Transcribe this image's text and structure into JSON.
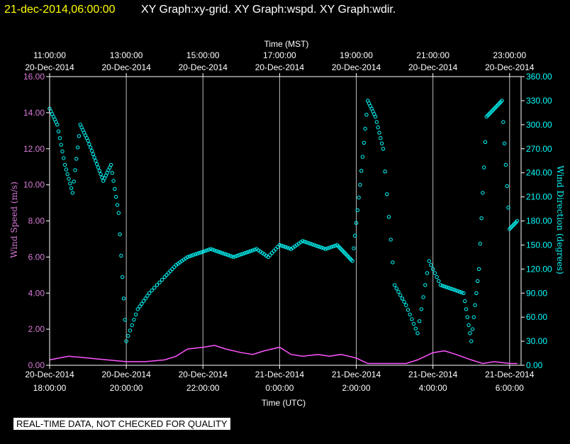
{
  "header": {
    "date_stamp": "21-dec-2014,06:00:00",
    "graphs_label": "XY Graph:xy-grid.  XY Graph:wspd.  XY Graph:wdir."
  },
  "notice": "REAL-TIME DATA, NOT CHECKED FOR QUALITY",
  "colors": {
    "wind_speed": "#ff55ff",
    "wind_direction": "#00ffff",
    "axes": "#ffffff",
    "background": "#000000",
    "title_date": "#ffff00"
  },
  "chart_data": {
    "type": "scatter",
    "grid": "vertical",
    "top_axis": {
      "label": "Time (MST)",
      "ticks": [
        {
          "hour": 18,
          "time": "11:00:00",
          "date": "20-Dec-2014"
        },
        {
          "hour": 20,
          "time": "13:00:00",
          "date": "20-Dec-2014"
        },
        {
          "hour": 22,
          "time": "15:00:00",
          "date": "20-Dec-2014"
        },
        {
          "hour": 24,
          "time": "17:00:00",
          "date": "20-Dec-2014"
        },
        {
          "hour": 26,
          "time": "19:00:00",
          "date": "20-Dec-2014"
        },
        {
          "hour": 28,
          "time": "21:00:00",
          "date": "20-Dec-2014"
        },
        {
          "hour": 30,
          "time": "23:00:00",
          "date": "20-Dec-2014"
        }
      ]
    },
    "bottom_axis": {
      "label": "Time (UTC)",
      "xlim": [
        18,
        30.3
      ],
      "ticks": [
        {
          "hour": 18,
          "date": "20-Dec-2014",
          "time": "18:00:00"
        },
        {
          "hour": 20,
          "date": "20-Dec-2014",
          "time": "20:00:00"
        },
        {
          "hour": 22,
          "date": "20-Dec-2014",
          "time": "22:00:00"
        },
        {
          "hour": 24,
          "date": "21-Dec-2014",
          "time": "0:00:00"
        },
        {
          "hour": 26,
          "date": "21-Dec-2014",
          "time": "2:00:00"
        },
        {
          "hour": 28,
          "date": "21-Dec-2014",
          "time": "4:00:00"
        },
        {
          "hour": 30,
          "date": "21-Dec-2014",
          "time": "6:00:00"
        }
      ]
    },
    "left_axis": {
      "label": "Wind Speed (m/s)",
      "ylim": [
        0,
        16
      ],
      "ticks": [
        "0.00",
        "2.00",
        "4.00",
        "6.00",
        "8.00",
        "10.00",
        "12.00",
        "14.00",
        "16.00"
      ]
    },
    "right_axis": {
      "label": "Wind Direction (degrees)",
      "ylim": [
        0,
        360
      ],
      "ticks": [
        "0.00",
        "30.00",
        "60.00",
        "90.00",
        "120.00",
        "150.00",
        "180.00",
        "210.00",
        "240.00",
        "270.00",
        "300.00",
        "330.00",
        "360.00"
      ]
    },
    "series": [
      {
        "key": "wspd",
        "axis": "left",
        "style": "line",
        "x": [
          18.0,
          18.5,
          19.0,
          19.5,
          20.0,
          20.5,
          21.0,
          21.3,
          21.6,
          22.0,
          22.3,
          22.6,
          23.0,
          23.3,
          23.6,
          24.0,
          24.3,
          24.6,
          25.0,
          25.3,
          25.6,
          26.0,
          26.3,
          26.6,
          27.0,
          27.3,
          27.6,
          28.0,
          28.3,
          28.6,
          29.0,
          29.3,
          29.6,
          30.0,
          30.2
        ],
        "values": [
          0.3,
          0.5,
          0.4,
          0.3,
          0.2,
          0.2,
          0.3,
          0.5,
          0.9,
          1.0,
          1.1,
          0.9,
          0.7,
          0.6,
          0.8,
          1.0,
          0.6,
          0.5,
          0.6,
          0.5,
          0.6,
          0.4,
          0.1,
          0.1,
          0.1,
          0.1,
          0.3,
          0.7,
          0.8,
          0.6,
          0.3,
          0.1,
          0.2,
          0.1,
          0.1
        ]
      },
      {
        "key": "wdir",
        "axis": "right",
        "style": "markers",
        "x": [
          18.0,
          18.2,
          18.4,
          18.6,
          18.8,
          19.0,
          19.2,
          19.4,
          19.6,
          19.8,
          20.0,
          20.3,
          20.6,
          21.0,
          21.3,
          21.6,
          21.9,
          22.2,
          22.5,
          22.8,
          23.1,
          23.4,
          23.7,
          24.0,
          24.3,
          24.6,
          24.9,
          25.2,
          25.5,
          25.7,
          25.9,
          26.1,
          26.3,
          26.5,
          26.7,
          27.0,
          27.3,
          27.6,
          27.9,
          28.2,
          28.5,
          28.8,
          29.0,
          29.2,
          29.4,
          29.6,
          29.8,
          30.0,
          30.2
        ],
        "values": [
          320,
          300,
          250,
          215,
          300,
          280,
          255,
          230,
          250,
          190,
          30,
          70,
          90,
          110,
          125,
          135,
          140,
          145,
          140,
          135,
          140,
          145,
          135,
          150,
          145,
          155,
          150,
          145,
          150,
          140,
          130,
          225,
          330,
          310,
          270,
          100,
          75,
          40,
          130,
          100,
          95,
          90,
          30,
          120,
          310,
          320,
          330,
          170,
          180
        ]
      }
    ]
  }
}
